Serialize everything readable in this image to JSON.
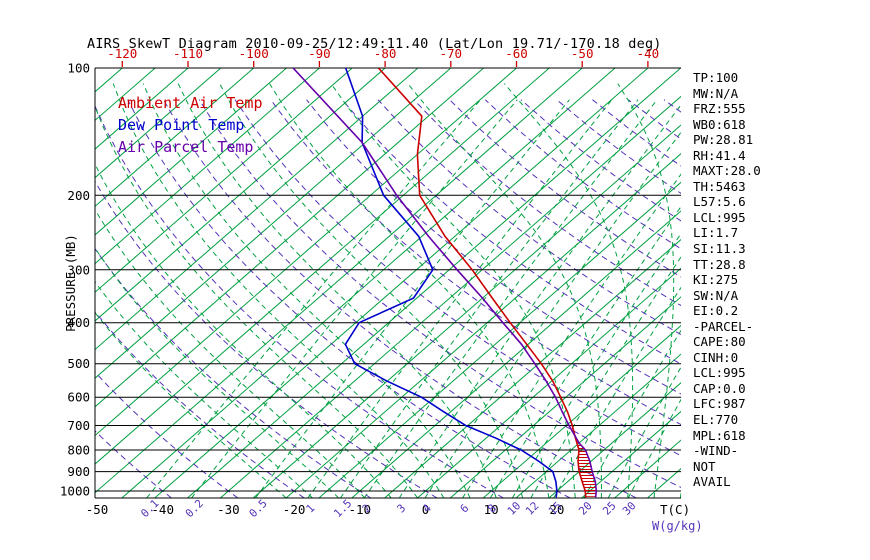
{
  "title": "AIRS SkewT Diagram 2010-09-25/12:49:11.40 (Lat/Lon 19.71/-170.18 deg)",
  "side_panel": {
    "lines": [
      "TP:100",
      "MW:N/A",
      "FRZ:555",
      "WB0:618",
      "PW:28.81",
      "RH:41.4",
      "MAXT:28.0",
      "TH:5463",
      "L57:5.6",
      "LCL:995",
      "LI:1.7",
      "SI:11.3",
      "TT:28.8",
      "KI:275",
      "SW:N/A",
      "EI:0.2",
      "-PARCEL-",
      "CAPE:80",
      "CINH:0",
      "LCL:995",
      "CAP:0.0",
      "LFC:987",
      "EL:770",
      "MPL:618",
      "-WIND-",
      "NOT",
      "AVAIL"
    ]
  },
  "chart_data": {
    "type": "line",
    "subtype": "skew_t_log_p_sounding",
    "title": "AIRS SkewT Diagram 2010-09-25/12:49:11.40 (Lat/Lon 19.71/-170.18 deg)",
    "ylabel": "PRESSURE (MB)",
    "x_unit_label": "T(C)",
    "w_unit_label": "W(g/kg)",
    "y_axis": {
      "scale": "log",
      "min_mb": 100,
      "max_mb": 1050
    },
    "pressure_ticks_mb": [
      100,
      200,
      300,
      400,
      500,
      600,
      700,
      800,
      900,
      1000
    ],
    "top_temp_ticks_c": [
      -120,
      -110,
      -100,
      -90,
      -80,
      -70,
      -60,
      -50,
      -40
    ],
    "bottom_temp_ticks_c": [
      -50,
      -40,
      -30,
      -20,
      -10,
      0,
      10,
      20
    ],
    "mixing_ratio_g_kg": [
      0.1,
      0.2,
      0.5,
      1,
      1.5,
      2,
      3,
      4,
      6,
      8,
      10,
      12,
      15,
      20,
      25,
      30
    ],
    "isotherms_c": {
      "min": -160,
      "max": 45,
      "step": 5
    },
    "moist_adiabats_start_c": {
      "min": -20,
      "max": 40,
      "step": 4
    },
    "dry_adiabats_theta_c": {
      "min": -40,
      "max": 200,
      "step": 10
    },
    "colors": {
      "ambient": "#cc0000",
      "dewpoint": "#0000cc",
      "parcel": "#6600aa",
      "isotherm": "#00a040",
      "mixing_ratio": "#00a040",
      "moist_adiabat": "#00a040",
      "dry_adiabat": "#5533bb",
      "pressure_line": "#000000",
      "top_axis_label": "#cc0000",
      "w_label": "#5533bb"
    },
    "series": [
      {
        "name": "Ambient Air Temp",
        "color": "#cc0000",
        "points_p_t": [
          [
            100,
            -81
          ],
          [
            130,
            -66
          ],
          [
            160,
            -60
          ],
          [
            200,
            -52.5
          ],
          [
            250,
            -41.5
          ],
          [
            300,
            -31.5
          ],
          [
            350,
            -23.5
          ],
          [
            400,
            -16.5
          ],
          [
            450,
            -10.2
          ],
          [
            500,
            -4.6
          ],
          [
            550,
            0.2
          ],
          [
            600,
            4.2
          ],
          [
            650,
            7.8
          ],
          [
            700,
            10.9
          ],
          [
            750,
            13.6
          ],
          [
            800,
            16.2
          ],
          [
            850,
            18.0
          ],
          [
            900,
            20.0
          ],
          [
            950,
            22.2
          ],
          [
            1000,
            24.3
          ],
          [
            1035,
            25.5
          ]
        ]
      },
      {
        "name": "Dew Point Temp",
        "color": "#0000cc",
        "points_p_t": [
          [
            100,
            -86
          ],
          [
            130,
            -75
          ],
          [
            150,
            -70.5
          ],
          [
            200,
            -58
          ],
          [
            250,
            -45.5
          ],
          [
            300,
            -37.5
          ],
          [
            350,
            -35.5
          ],
          [
            400,
            -39.5
          ],
          [
            450,
            -37.8
          ],
          [
            500,
            -33
          ],
          [
            550,
            -25
          ],
          [
            600,
            -17
          ],
          [
            650,
            -11
          ],
          [
            700,
            -5.3
          ],
          [
            750,
            1.5
          ],
          [
            800,
            7.4
          ],
          [
            850,
            12
          ],
          [
            900,
            16
          ],
          [
            950,
            18.2
          ],
          [
            1000,
            20
          ],
          [
            1035,
            21
          ]
        ]
      },
      {
        "name": "Air Parcel Temp",
        "color": "#6600aa",
        "points_p_t": [
          [
            100,
            -94
          ],
          [
            150,
            -70.5
          ],
          [
            200,
            -56
          ],
          [
            250,
            -44
          ],
          [
            300,
            -33.8
          ],
          [
            350,
            -25
          ],
          [
            400,
            -17.6
          ],
          [
            450,
            -11
          ],
          [
            500,
            -5.6
          ],
          [
            550,
            -0.8
          ],
          [
            600,
            3.4
          ],
          [
            650,
            7.0
          ],
          [
            700,
            10.4
          ],
          [
            770,
            15.0
          ],
          [
            800,
            17.2
          ],
          [
            850,
            19.8
          ],
          [
            900,
            22.0
          ],
          [
            950,
            24.2
          ],
          [
            1000,
            26.0
          ],
          [
            1035,
            27.0
          ]
        ]
      }
    ],
    "cape_region": {
      "p_top_mb": 754,
      "p_bottom_mb": 1030
    }
  }
}
